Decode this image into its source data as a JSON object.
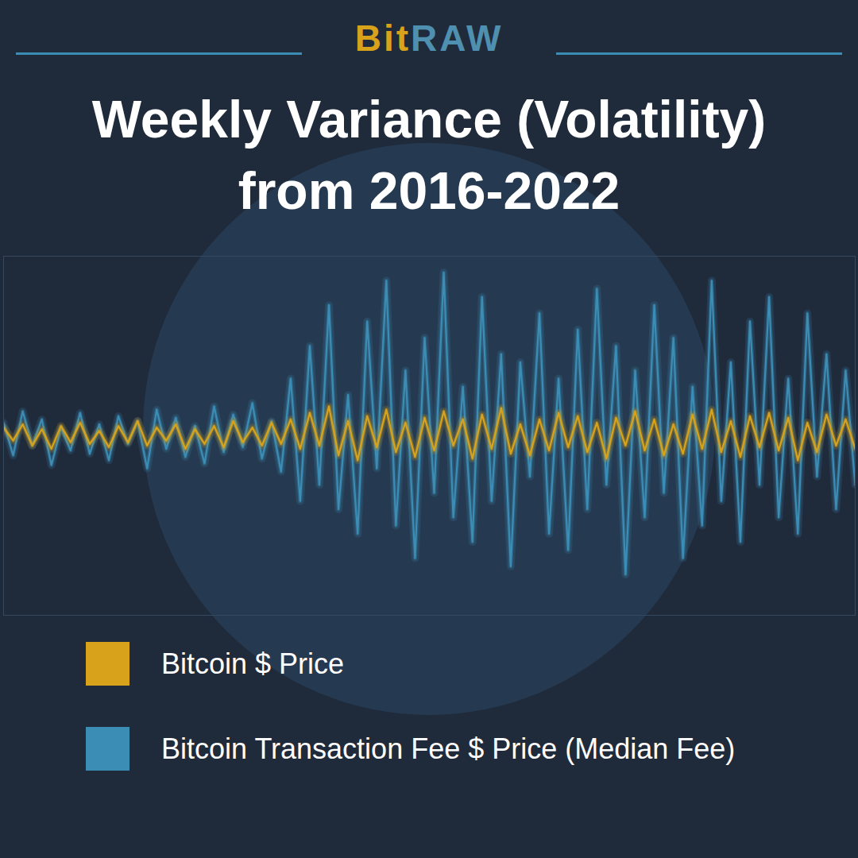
{
  "logo": "BitRAW",
  "chart_data": {
    "type": "line",
    "title": "Weekly Variance (Volatility) from 2016-2022",
    "x": [
      1,
      2,
      3,
      4,
      5,
      6,
      7,
      8,
      9,
      10,
      11,
      12,
      13,
      14,
      15,
      16,
      17,
      18,
      19,
      20,
      21,
      22,
      23,
      24,
      25,
      26,
      27,
      28,
      29,
      30,
      31,
      32,
      33,
      34,
      35,
      36,
      37,
      38,
      39,
      40,
      41,
      42,
      43,
      44,
      45,
      46,
      47,
      48,
      49,
      50,
      51,
      52,
      53,
      54,
      55,
      56,
      57,
      58,
      59,
      60,
      61,
      62,
      63,
      64,
      65,
      66,
      67,
      68,
      69,
      70,
      71,
      72,
      73,
      74,
      75,
      76,
      77,
      78,
      79,
      80,
      81,
      82,
      83,
      84,
      85,
      86,
      87,
      88,
      89,
      90
    ],
    "series": [
      {
        "name": "Bitcoin $ Price",
        "color": "#d8a31a",
        "values": [
          5,
          -3,
          7,
          -6,
          4,
          -8,
          6,
          -4,
          8,
          -5,
          3,
          -7,
          6,
          -4,
          9,
          -6,
          5,
          -3,
          7,
          -8,
          4,
          -5,
          6,
          -7,
          9,
          -4,
          5,
          -6,
          8,
          -5,
          10,
          -8,
          14,
          -6,
          18,
          -12,
          9,
          -15,
          12,
          -7,
          16,
          -10,
          8,
          -13,
          11,
          -9,
          15,
          -6,
          10,
          -14,
          13,
          -8,
          17,
          -11,
          7,
          -12,
          10,
          -9,
          14,
          -7,
          12,
          -10,
          8,
          -14,
          11,
          -6,
          15,
          -9,
          10,
          -12,
          7,
          -11,
          13,
          -8,
          16,
          -10,
          9,
          -13,
          12,
          -7,
          14,
          -9,
          11,
          -15,
          8,
          -10,
          13,
          -6,
          10,
          -8
        ]
      },
      {
        "name": "Bitcoin Transaction Fee $ Price (Median Fee)",
        "color": "#3b8db5",
        "values": [
          8,
          -12,
          15,
          -6,
          10,
          -18,
          5,
          -9,
          14,
          -11,
          7,
          -15,
          12,
          -5,
          9,
          -20,
          16,
          -8,
          11,
          -13,
          6,
          -17,
          18,
          -10,
          13,
          -7,
          20,
          -14,
          9,
          -22,
          35,
          -40,
          55,
          -30,
          80,
          -45,
          25,
          -60,
          70,
          -20,
          95,
          -55,
          40,
          -75,
          60,
          -35,
          100,
          -50,
          30,
          -65,
          85,
          -40,
          50,
          -80,
          45,
          -25,
          75,
          -60,
          35,
          -70,
          65,
          -45,
          90,
          -30,
          55,
          -85,
          40,
          -50,
          80,
          -35,
          60,
          -75,
          30,
          -55,
          95,
          -40,
          45,
          -65,
          70,
          -30,
          85,
          -50,
          35,
          -60,
          75,
          -25,
          50,
          -45,
          40,
          -30
        ]
      }
    ],
    "xlim": [
      1,
      90
    ],
    "ylim": [
      -110,
      110
    ],
    "xticks": [],
    "yticks": [],
    "grid": false,
    "tick_labels": false,
    "legend": "bottom"
  }
}
